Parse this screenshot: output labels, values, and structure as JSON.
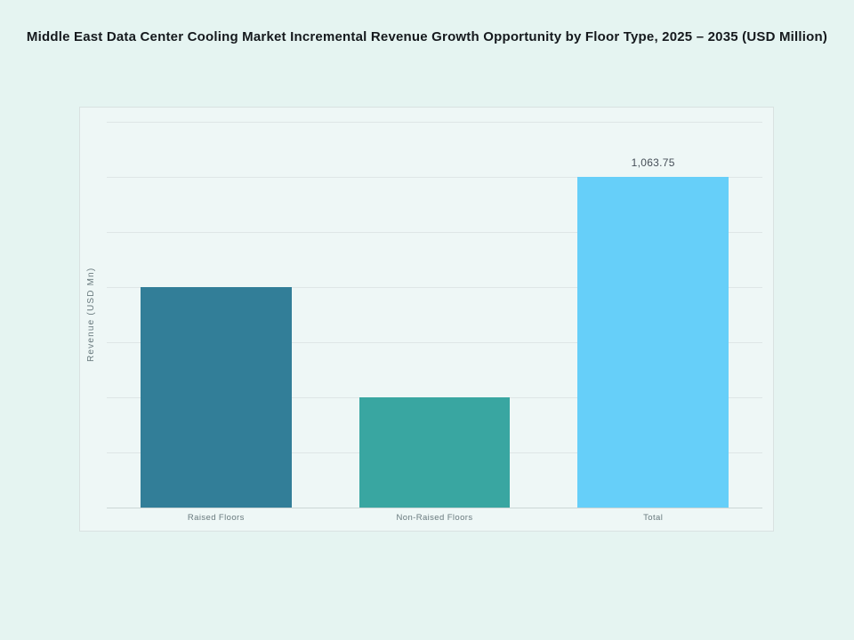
{
  "page": {
    "background": "#e5f4f1",
    "panel_background": "#eef7f6"
  },
  "chart_data": {
    "type": "bar",
    "title": "Middle East Data Center Cooling Market Incremental Revenue Growth Opportunity by Floor Type, 2025 – 2035 (USD Million)",
    "ylabel": "Revenue (USD Mn)",
    "xlabel": "",
    "categories": [
      "Raised Floors",
      "Non-Raised Floors",
      "Total"
    ],
    "values": [
      709.2,
      354.6,
      1063.75
    ],
    "value_labels": [
      "",
      "",
      "1,063.75"
    ],
    "bar_colors": [
      "#327e98",
      "#39a6a1",
      "#66cff9"
    ],
    "ylim": [
      0,
      1240.9
    ],
    "gridline_count": 7,
    "grid": true,
    "legend": false
  }
}
